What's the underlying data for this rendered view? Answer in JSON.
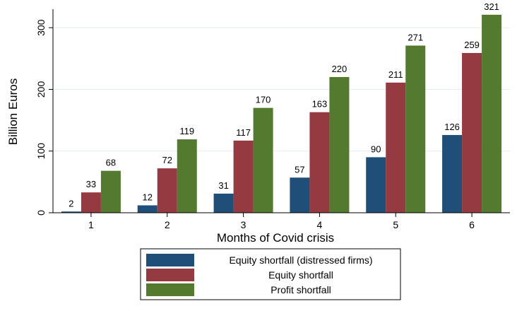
{
  "chart_data": {
    "type": "bar",
    "title": "",
    "xlabel": "Months of Covid crisis",
    "ylabel": "Billion Euros",
    "categories": [
      "1",
      "2",
      "3",
      "4",
      "5",
      "6"
    ],
    "series": [
      {
        "name": "Equity shortfall (distressed firms)",
        "color": "#1f4e79",
        "values": [
          2,
          12,
          31,
          57,
          90,
          126
        ]
      },
      {
        "name": "Equity shortfall",
        "color": "#943a40",
        "values": [
          33,
          72,
          117,
          163,
          211,
          259
        ]
      },
      {
        "name": "Profit shortfall",
        "color": "#537a2f",
        "values": [
          68,
          119,
          170,
          220,
          271,
          321
        ]
      }
    ],
    "ylim": [
      0,
      330
    ],
    "yticks": [
      0,
      100,
      200,
      300
    ],
    "grid": true,
    "legend_position": "bottom"
  }
}
